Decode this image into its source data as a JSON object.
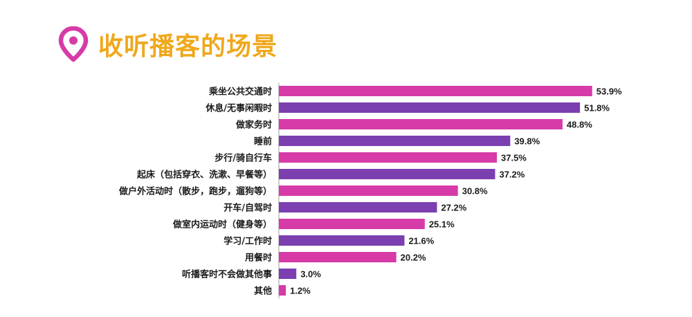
{
  "title": "收听播客的场景",
  "colors": {
    "title": "#efa81c",
    "icon": "#d63ba8",
    "bar_magenta": "#d63ba8",
    "bar_purple": "#7b3fb0",
    "axis": "#9a9a9a"
  },
  "icons": {
    "title_icon": "map-pin-icon"
  },
  "chart_data": {
    "type": "bar",
    "orientation": "horizontal",
    "title": "收听播客的场景",
    "unit": "%",
    "xlim": [
      0,
      60
    ],
    "categories": [
      "乘坐公共交通时",
      "休息/无事闲暇时",
      "做家务时",
      "睡前",
      "步行/骑自行车",
      "起床（包括穿衣、洗漱、早餐等）",
      "做户外活动时（散步，跑步，遛狗等）",
      "开车/自驾时",
      "做室内运动时（健身等）",
      "学习/工作时",
      "用餐时",
      "听播客时不会做其他事",
      "其他"
    ],
    "values": [
      53.9,
      51.8,
      48.8,
      39.8,
      37.5,
      37.2,
      30.8,
      27.2,
      25.1,
      21.6,
      20.2,
      3.0,
      1.2
    ],
    "labels": [
      "53.9%",
      "51.8%",
      "48.8%",
      "39.8%",
      "37.5%",
      "37.2%",
      "30.8%",
      "27.2%",
      "25.1%",
      "21.6%",
      "20.2%",
      "3.0%",
      "1.2%"
    ],
    "bar_colors": [
      "#d63ba8",
      "#7b3fb0",
      "#d63ba8",
      "#7b3fb0",
      "#d63ba8",
      "#7b3fb0",
      "#d63ba8",
      "#7b3fb0",
      "#d63ba8",
      "#7b3fb0",
      "#d63ba8",
      "#7b3fb0",
      "#d63ba8"
    ]
  }
}
